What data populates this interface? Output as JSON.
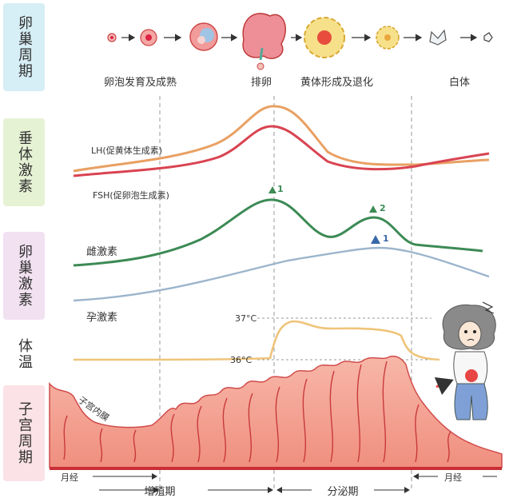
{
  "side_labels": {
    "ovarian_cycle": "卵巢周期",
    "pituitary_hormones": "垂体激素",
    "ovarian_hormones": "卵巢激素",
    "body_temperature": "体温",
    "uterine_cycle": "子宫周期"
  },
  "phases": {
    "follicle_development": "卵泡发育及成熟",
    "ovulation": "排卵",
    "corpus_luteum": "黄体形成及退化",
    "corpus_albicans": "白体"
  },
  "hormone_labels": {
    "lh": "LH(促黄体生成素)",
    "fsh": "FSH(促卵泡生成素)",
    "estrogen": "雌激素",
    "progesterone": "孕激素",
    "peak1_marker": "1",
    "peak2_marker": "2",
    "prog_peak_marker": "1"
  },
  "temperature": {
    "high": "37°C",
    "low": "36°C"
  },
  "uterus": {
    "endometrium": "子宫内膜",
    "menstruation_start": "月经",
    "proliferative": "增殖期",
    "secretory": "分泌期",
    "menstruation_end": "月经"
  },
  "colors": {
    "lh": "#e9a063",
    "fsh": "#d94351",
    "estrogen": "#3c8a55",
    "progesterone": "#9cb5cc",
    "temperature": "#efc47a",
    "uterus": "#e35557"
  }
}
